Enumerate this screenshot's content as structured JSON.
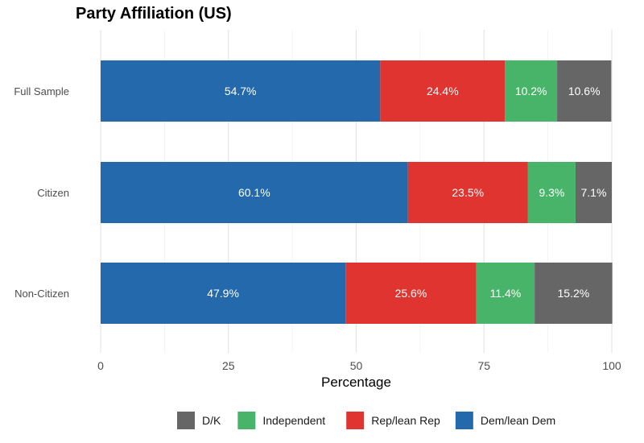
{
  "chart_data": {
    "type": "bar",
    "orientation": "horizontal",
    "stacked": true,
    "title": "Party Affiliation (US)",
    "xlabel": "Percentage",
    "ylabel": "",
    "xlim": [
      0,
      100
    ],
    "xticks": [
      0,
      25,
      50,
      75,
      100
    ],
    "categories": [
      "Full Sample",
      "Citizen",
      "Non-Citizen"
    ],
    "series": [
      {
        "name": "Dem/lean Dem",
        "color": "#2369AB",
        "values": [
          54.7,
          60.1,
          47.9
        ],
        "labels": [
          "54.7%",
          "60.1%",
          "47.9%"
        ]
      },
      {
        "name": "Rep/lean Rep",
        "color": "#DF3430",
        "values": [
          24.4,
          23.5,
          25.6
        ],
        "labels": [
          "24.4%",
          "23.5%",
          "25.6%"
        ]
      },
      {
        "name": "Independent",
        "color": "#48B46A",
        "values": [
          10.2,
          9.3,
          11.4
        ],
        "labels": [
          "10.2%",
          "9.3%",
          "11.4%"
        ]
      },
      {
        "name": "D/K",
        "color": "#666666",
        "values": [
          10.6,
          7.1,
          15.2
        ],
        "labels": [
          "10.6%",
          "7.1%",
          "15.2%"
        ]
      }
    ],
    "legend_order": [
      "D/K",
      "Independent",
      "Rep/lean Rep",
      "Dem/lean Dem"
    ],
    "legend_position": "bottom",
    "grid": true
  }
}
